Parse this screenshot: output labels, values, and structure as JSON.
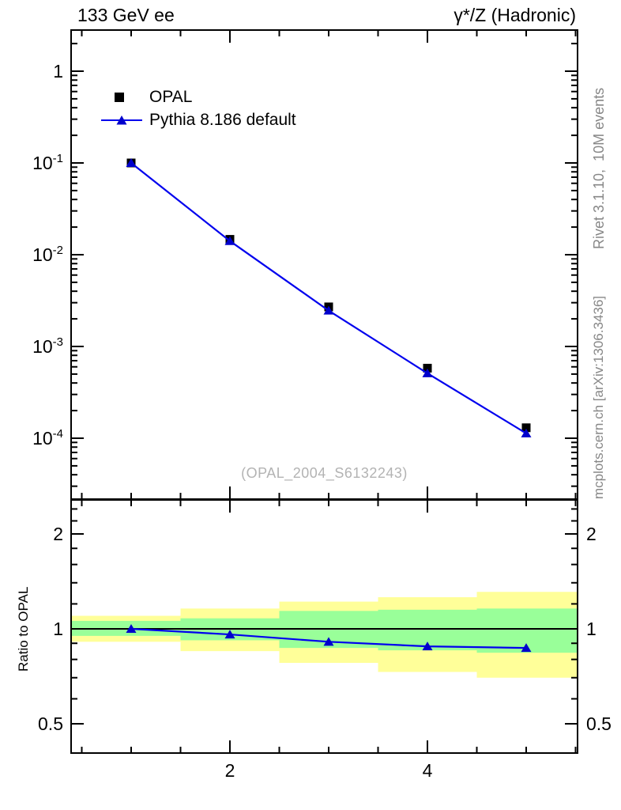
{
  "figure": {
    "title_left": "133 GeV ee",
    "title_right": "γ*/Z (Hadronic)",
    "watermark": "(OPAL_2004_S6132243)",
    "credit_right_top": "Rivet 3.1.10,  10M events",
    "credit_right_bottom": "mcplots.cern.ch [arXiv:1306.3436]"
  },
  "chart_data": {
    "type": "line",
    "legend": [
      {
        "label": "OPAL",
        "marker": "black-square"
      },
      {
        "label": "Pythia 8.186 default",
        "marker": "blue-line-triangle"
      }
    ],
    "colors": {
      "data_marker": "#000000",
      "mc_line": "#0000ee",
      "mc_marker": "#0000cc",
      "band_green": "#99ff99",
      "band_yellow": "#ffff99",
      "frame": "#000000",
      "credit_gray": "#878787",
      "watermark_gray": "#b3b3b3"
    },
    "main_panel": {
      "xscale": "linear",
      "xlim": [
        0.39,
        5.52
      ],
      "x_major_ticks": [
        2,
        4
      ],
      "x_minor_tick_step": 0.5,
      "x_tick_labels": [
        {
          "value": 2,
          "label": "2"
        },
        {
          "value": 4,
          "label": "4"
        }
      ],
      "yscale": "log",
      "ylim": [
        2.2e-05,
        2.8
      ],
      "y_tick_labels": [
        {
          "value": 1,
          "base": "1",
          "sup": ""
        },
        {
          "value": 0.1,
          "base": "10",
          "sup": "-1"
        },
        {
          "value": 0.01,
          "base": "10",
          "sup": "-2"
        },
        {
          "value": 0.001,
          "base": "10",
          "sup": "-3"
        },
        {
          "value": 0.0001,
          "base": "10",
          "sup": "-4"
        }
      ],
      "series": [
        {
          "name": "OPAL",
          "role": "data",
          "marker": "square",
          "line": false,
          "x": [
            1,
            2,
            3,
            4,
            5
          ],
          "values": [
            0.1,
            0.0147,
            0.0027,
            0.00058,
            0.00013
          ]
        },
        {
          "name": "Pythia 8.186 default",
          "role": "mc",
          "marker": "triangle",
          "line": true,
          "x": [
            1,
            2,
            3,
            4,
            5
          ],
          "values": [
            0.1,
            0.0141,
            0.00246,
            0.00051,
            0.000113
          ]
        }
      ]
    },
    "ratio_panel": {
      "ylabel": "Ratio to OPAL",
      "yscale": "log",
      "ylim": [
        0.4,
        2.57
      ],
      "reference_line": 1.0,
      "y_tick_labels": [
        {
          "value": 2,
          "label": "2"
        },
        {
          "value": 1,
          "label": "1"
        },
        {
          "value": 0.5,
          "label": "0.5"
        }
      ],
      "y_minor_ticks": [
        0.6,
        0.7,
        0.8,
        0.9,
        1.2,
        1.4,
        1.6,
        1.8,
        2.2,
        2.4
      ],
      "bands": [
        {
          "x_range": [
            0.39,
            1.5
          ],
          "green": [
            0.95,
            1.06
          ],
          "yellow": [
            0.91,
            1.1
          ]
        },
        {
          "x_range": [
            1.5,
            2.5
          ],
          "green": [
            0.92,
            1.08
          ],
          "yellow": [
            0.85,
            1.16
          ]
        },
        {
          "x_range": [
            2.5,
            3.5
          ],
          "green": [
            0.87,
            1.14
          ],
          "yellow": [
            0.78,
            1.22
          ]
        },
        {
          "x_range": [
            3.5,
            4.5
          ],
          "green": [
            0.855,
            1.15
          ],
          "yellow": [
            0.73,
            1.26
          ]
        },
        {
          "x_range": [
            4.5,
            5.52
          ],
          "green": [
            0.84,
            1.16
          ],
          "yellow": [
            0.7,
            1.31
          ]
        }
      ],
      "series": {
        "name": "Pythia 8.186 default",
        "x": [
          1,
          2,
          3,
          4,
          5
        ],
        "values": [
          1.0,
          0.96,
          0.91,
          0.88,
          0.87
        ]
      }
    }
  }
}
